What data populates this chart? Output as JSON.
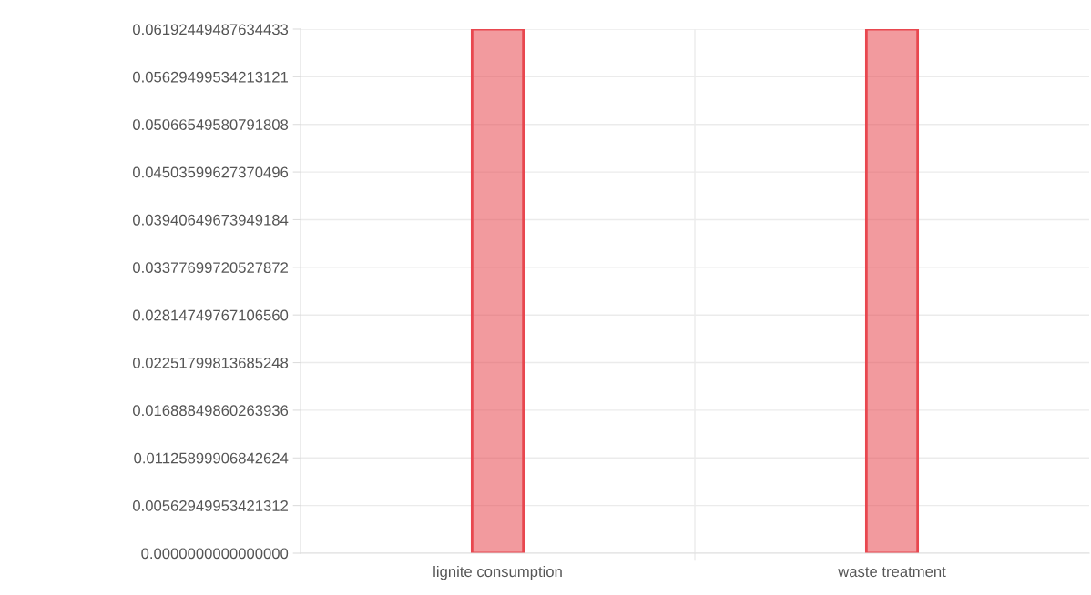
{
  "chart_data": {
    "type": "bar",
    "categories": [
      "lignite consumption",
      "waste treatment"
    ],
    "values": [
      0.0619,
      0.0619
    ],
    "color": "#e8474f",
    "ylim": [
      0,
      0.06192449487634433
    ],
    "yticks": [
      {
        "value": 0,
        "label": "0.0000000000000000"
      },
      {
        "value": 0.00562949953421312,
        "label": "0.00562949953421312"
      },
      {
        "value": 0.01125899906842624,
        "label": "0.01125899906842624"
      },
      {
        "value": 0.01688849860263936,
        "label": "0.01688849860263936"
      },
      {
        "value": 0.02251799813685248,
        "label": "0.02251799813685248"
      },
      {
        "value": 0.0281474976710656,
        "label": "0.02814749767106560"
      },
      {
        "value": 0.03377699720527872,
        "label": "0.03377699720527872"
      },
      {
        "value": 0.03940649673949184,
        "label": "0.03940649673949184"
      },
      {
        "value": 0.04503599627370496,
        "label": "0.04503599627370496"
      },
      {
        "value": 0.05066549580791808,
        "label": "0.05066549580791808"
      },
      {
        "value": 0.05629499534213121,
        "label": "0.05629499534213121"
      },
      {
        "value": 0.06192449487634433,
        "label": "0.06192449487634433"
      }
    ],
    "grid": true
  }
}
